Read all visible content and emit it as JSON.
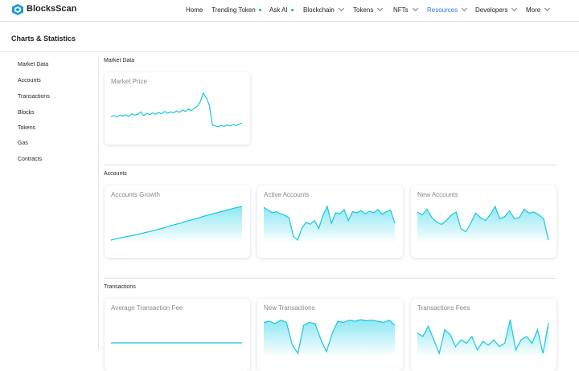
{
  "header": {
    "brand": "BlocksScan",
    "nav": [
      {
        "label": "Home"
      },
      {
        "label": "Trending Token",
        "dot": true
      },
      {
        "label": "Ask AI",
        "dot": true
      },
      {
        "label": "Blockchain",
        "menu": true
      },
      {
        "label": "Tokens",
        "menu": true
      },
      {
        "label": "NFTs",
        "menu": true
      },
      {
        "label": "Resources",
        "menu": true,
        "active": true
      },
      {
        "label": "Developers",
        "menu": true
      },
      {
        "label": "More",
        "menu": true
      }
    ]
  },
  "page_title": "Charts & Statistics",
  "sidebar": [
    "Market Data",
    "Accounts",
    "Transactions",
    "Blocks",
    "Tokens",
    "Gas",
    "Contracts"
  ],
  "sections": [
    {
      "title": "Market Data",
      "cards": [
        {
          "title": "Market Price",
          "area": false,
          "values": [
            30,
            32,
            29,
            33,
            31,
            34,
            30,
            36,
            33,
            35,
            40,
            32,
            37,
            34,
            38,
            35,
            39,
            36,
            41,
            37,
            40,
            38,
            42,
            39,
            44,
            41,
            46,
            43,
            48,
            52,
            62,
            80,
            70,
            55,
            12,
            10,
            8,
            11,
            9,
            12,
            10,
            13,
            11,
            14,
            16
          ]
        }
      ]
    },
    {
      "title": "Accounts",
      "cards": [
        {
          "title": "Accounts Growth",
          "area": true,
          "values": [
            2,
            6,
            9,
            12,
            15,
            18,
            22,
            25,
            29,
            33,
            37,
            42,
            46,
            50,
            55,
            59,
            63,
            68,
            72,
            76,
            80,
            84,
            88,
            92,
            95
          ]
        },
        {
          "title": "Active Accounts",
          "area": true,
          "values": [
            70,
            65,
            60,
            62,
            58,
            55,
            50,
            15,
            8,
            30,
            42,
            38,
            45,
            30,
            55,
            72,
            40,
            60,
            58,
            66,
            45,
            62,
            60,
            64,
            58,
            63,
            60,
            66,
            57,
            62,
            65,
            40
          ]
        },
        {
          "title": "New Accounts",
          "area": true,
          "values": [
            60,
            55,
            65,
            50,
            42,
            38,
            45,
            55,
            60,
            30,
            25,
            40,
            58,
            50,
            45,
            55,
            70,
            48,
            52,
            62,
            48,
            50,
            65,
            58,
            60,
            55,
            48,
            10
          ]
        }
      ]
    },
    {
      "title": "Transactions",
      "cards": [
        {
          "title": "Average Transaction Fee",
          "area": false,
          "values": [
            5,
            5,
            5,
            5,
            5,
            5,
            5,
            5,
            5,
            5,
            5,
            5,
            5,
            5,
            5,
            5,
            5,
            5,
            5,
            5
          ]
        },
        {
          "title": "New Transactions",
          "area": true,
          "values": [
            60,
            62,
            58,
            64,
            60,
            20,
            5,
            55,
            60,
            58,
            30,
            8,
            40,
            62,
            60,
            64,
            62,
            65,
            63,
            64,
            62,
            60,
            64,
            55
          ]
        },
        {
          "title": "Transactions Fees",
          "area": true,
          "values": [
            40,
            35,
            50,
            30,
            10,
            45,
            38,
            20,
            30,
            25,
            35,
            15,
            28,
            22,
            30,
            20,
            25,
            60,
            15,
            30,
            35,
            25,
            45,
            10,
            55
          ]
        }
      ]
    }
  ]
}
